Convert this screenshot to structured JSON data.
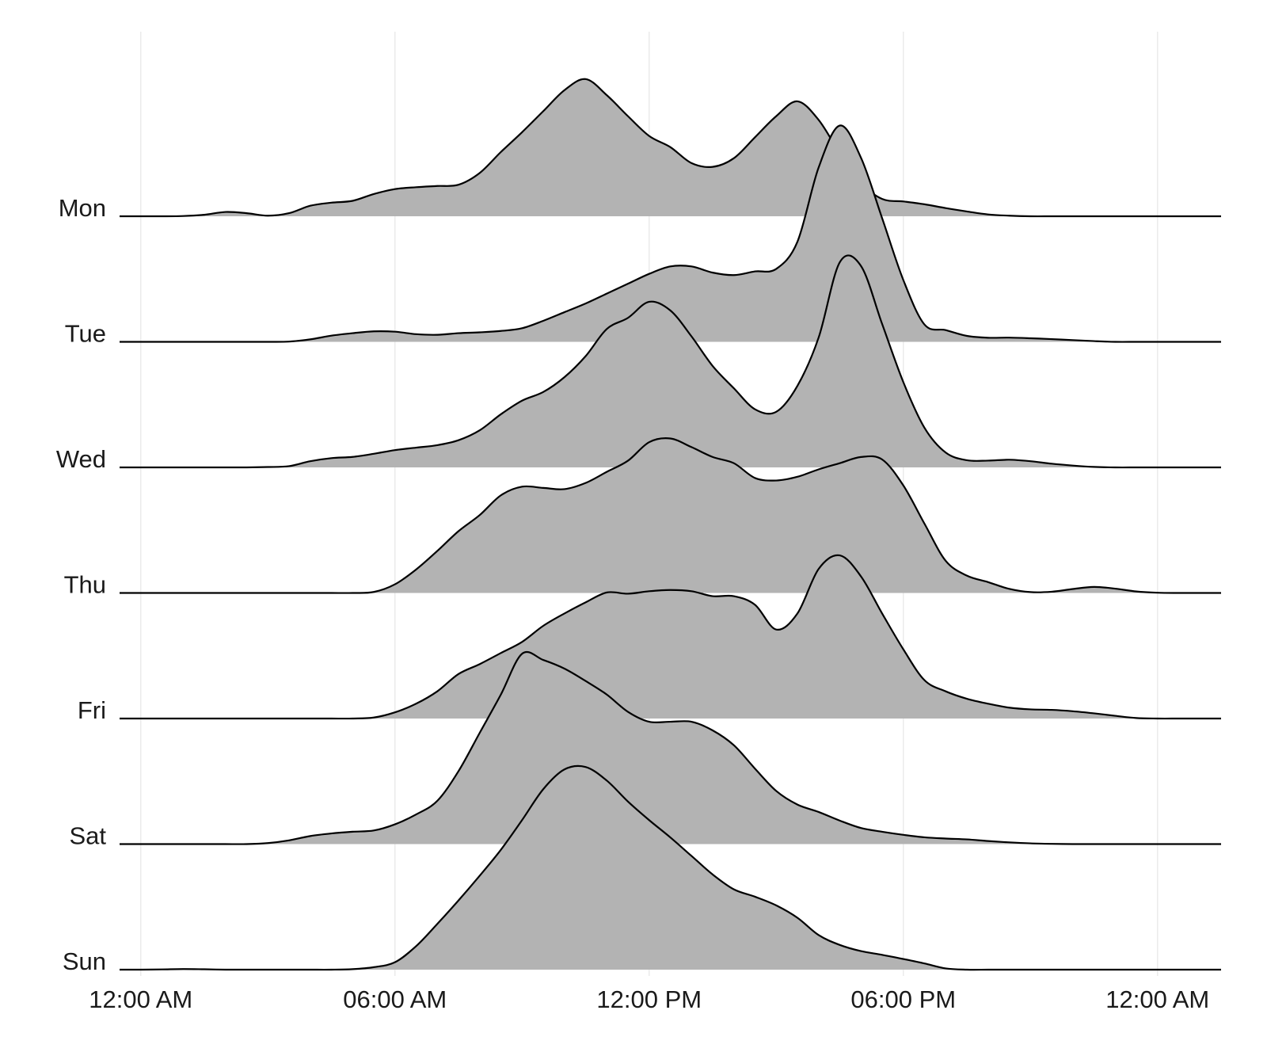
{
  "chart_data": {
    "type": "area",
    "subtype": "ridgeline",
    "title": "",
    "xlabel": "",
    "ylabel": "",
    "x_unit": "hour of day",
    "xlim": [
      -0.5,
      25.5
    ],
    "x_ticks": [
      0,
      6,
      12,
      18,
      24
    ],
    "x_tick_labels": [
      "12:00 AM",
      "06:00 AM",
      "12:00 PM",
      "06:00 PM",
      "12:00 AM"
    ],
    "grid": "vertical only",
    "fill_color": "#b3b3b3",
    "line_color": "#000000",
    "x": [
      -0.5,
      0,
      0.5,
      1,
      1.5,
      2,
      2.5,
      3,
      3.5,
      4,
      4.5,
      5,
      5.5,
      6,
      6.5,
      7,
      7.5,
      8,
      8.5,
      9,
      9.5,
      10,
      10.5,
      11,
      11.5,
      12,
      12.5,
      13,
      13.5,
      14,
      14.5,
      15,
      15.5,
      16,
      16.5,
      17,
      17.5,
      18,
      18.5,
      19,
      19.5,
      20,
      20.5,
      21,
      21.5,
      22,
      22.5,
      23,
      23.5,
      24,
      24.5,
      25,
      25.5
    ],
    "series": [
      {
        "name": "Mon",
        "values": [
          0,
          0,
          0,
          0.002,
          0.012,
          0.035,
          0.025,
          0.005,
          0.025,
          0.085,
          0.11,
          0.125,
          0.18,
          0.22,
          0.235,
          0.245,
          0.255,
          0.35,
          0.52,
          0.68,
          0.85,
          1.02,
          1.11,
          0.98,
          0.81,
          0.65,
          0.56,
          0.43,
          0.4,
          0.47,
          0.64,
          0.81,
          0.93,
          0.78,
          0.51,
          0.27,
          0.14,
          0.12,
          0.097,
          0.066,
          0.039,
          0.015,
          0.005,
          0,
          0,
          0,
          0,
          0,
          0,
          0,
          0,
          0,
          0
        ]
      },
      {
        "name": "Tue",
        "values": [
          0,
          0,
          0,
          0,
          0,
          0,
          0,
          0,
          0.002,
          0.02,
          0.05,
          0.07,
          0.085,
          0.082,
          0.062,
          0.057,
          0.07,
          0.077,
          0.088,
          0.11,
          0.17,
          0.24,
          0.31,
          0.39,
          0.47,
          0.55,
          0.61,
          0.61,
          0.56,
          0.54,
          0.57,
          0.59,
          0.81,
          1.41,
          1.75,
          1.49,
          1,
          0.5,
          0.14,
          0.095,
          0.048,
          0.033,
          0.034,
          0.029,
          0.022,
          0.014,
          0.006,
          0,
          0,
          0,
          0,
          0,
          0
        ]
      },
      {
        "name": "Wed",
        "values": [
          0,
          0,
          0,
          0,
          0,
          0,
          0,
          0.003,
          0.01,
          0.05,
          0.075,
          0.085,
          0.11,
          0.14,
          0.16,
          0.18,
          0.22,
          0.3,
          0.43,
          0.54,
          0.61,
          0.73,
          0.9,
          1.12,
          1.21,
          1.34,
          1.27,
          1.06,
          0.82,
          0.64,
          0.47,
          0.45,
          0.66,
          1.05,
          1.66,
          1.63,
          1.16,
          0.69,
          0.32,
          0.12,
          0.058,
          0.055,
          0.062,
          0.05,
          0.03,
          0.015,
          0.004,
          0,
          0,
          0,
          0,
          0,
          0
        ]
      },
      {
        "name": "Thu",
        "values": [
          0,
          0,
          0,
          0,
          0,
          0,
          0,
          0,
          0,
          0,
          0,
          0,
          0.008,
          0.07,
          0.19,
          0.34,
          0.5,
          0.63,
          0.79,
          0.86,
          0.85,
          0.84,
          0.89,
          0.98,
          1.07,
          1.22,
          1.25,
          1.18,
          1.1,
          1.05,
          0.93,
          0.91,
          0.94,
          1.0,
          1.05,
          1.1,
          1.08,
          0.87,
          0.56,
          0.26,
          0.14,
          0.088,
          0.033,
          0.007,
          0.01,
          0.032,
          0.049,
          0.035,
          0.012,
          0.002,
          0,
          0,
          0
        ]
      },
      {
        "name": "Fri",
        "values": [
          0,
          0,
          0,
          0,
          0,
          0,
          0,
          0,
          0,
          0,
          0,
          0,
          0.008,
          0.05,
          0.12,
          0.22,
          0.36,
          0.44,
          0.53,
          0.62,
          0.75,
          0.85,
          0.94,
          1.02,
          1.01,
          1.03,
          1.04,
          1.03,
          0.99,
          0.99,
          0.92,
          0.72,
          0.85,
          1.21,
          1.32,
          1.15,
          0.85,
          0.56,
          0.31,
          0.22,
          0.16,
          0.12,
          0.088,
          0.074,
          0.07,
          0.059,
          0.042,
          0.022,
          0.004,
          0,
          0,
          0,
          0
        ]
      },
      {
        "name": "Sat",
        "values": [
          0,
          0,
          0,
          0,
          0,
          0,
          0,
          0.008,
          0.03,
          0.065,
          0.086,
          0.1,
          0.11,
          0.16,
          0.24,
          0.35,
          0.59,
          0.9,
          1.21,
          1.54,
          1.49,
          1.42,
          1.32,
          1.21,
          1.07,
          0.99,
          0.99,
          0.99,
          0.92,
          0.8,
          0.61,
          0.43,
          0.32,
          0.26,
          0.19,
          0.13,
          0.1,
          0.075,
          0.055,
          0.045,
          0.038,
          0.025,
          0.014,
          0.006,
          0.002,
          0,
          0,
          0,
          0,
          0,
          0,
          0,
          0
        ]
      },
      {
        "name": "Sun",
        "values": [
          0,
          0,
          0.002,
          0.005,
          0.003,
          0,
          0,
          0,
          0,
          0,
          0,
          0.004,
          0.02,
          0.06,
          0.19,
          0.37,
          0.56,
          0.76,
          0.97,
          1.21,
          1.46,
          1.62,
          1.64,
          1.53,
          1.36,
          1.21,
          1.07,
          0.92,
          0.77,
          0.65,
          0.59,
          0.52,
          0.42,
          0.28,
          0.2,
          0.15,
          0.12,
          0.086,
          0.05,
          0.01,
          0,
          0,
          0,
          0,
          0,
          0,
          0,
          0,
          0,
          0,
          0,
          0,
          0
        ]
      }
    ]
  }
}
